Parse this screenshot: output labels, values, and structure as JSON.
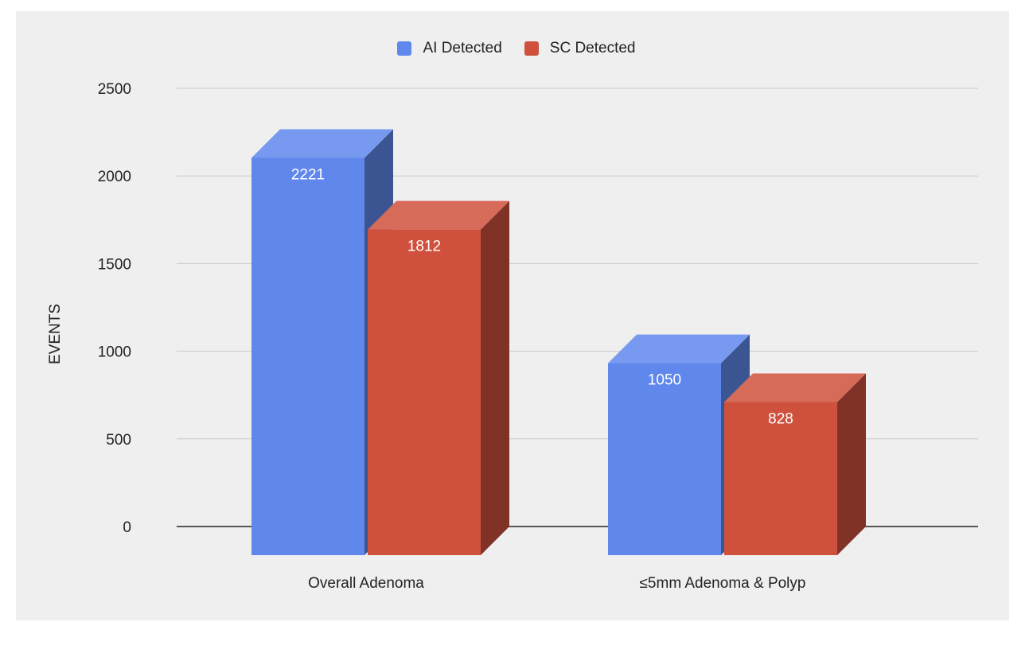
{
  "chart_data": {
    "type": "bar",
    "title": "",
    "categories": [
      "Overall Adenoma",
      "≤5mm Adenoma & Polyp"
    ],
    "series": [
      {
        "name": "AI Detected",
        "values": [
          2221,
          1050
        ],
        "color": "#5f87ec"
      },
      {
        "name": "SC Detected",
        "values": [
          1812,
          828
        ],
        "color": "#cf513d"
      }
    ],
    "data_labels": [
      [
        "2221",
        "1812"
      ],
      [
        "1050",
        "828"
      ]
    ],
    "xlabel": "",
    "ylabel": "EVENTS",
    "ylim": [
      0,
      2500
    ],
    "yticks": [
      0,
      500,
      1000,
      1500,
      2000,
      2500
    ],
    "grid": true,
    "legend_position": "top-center",
    "style": "3d-bars"
  }
}
